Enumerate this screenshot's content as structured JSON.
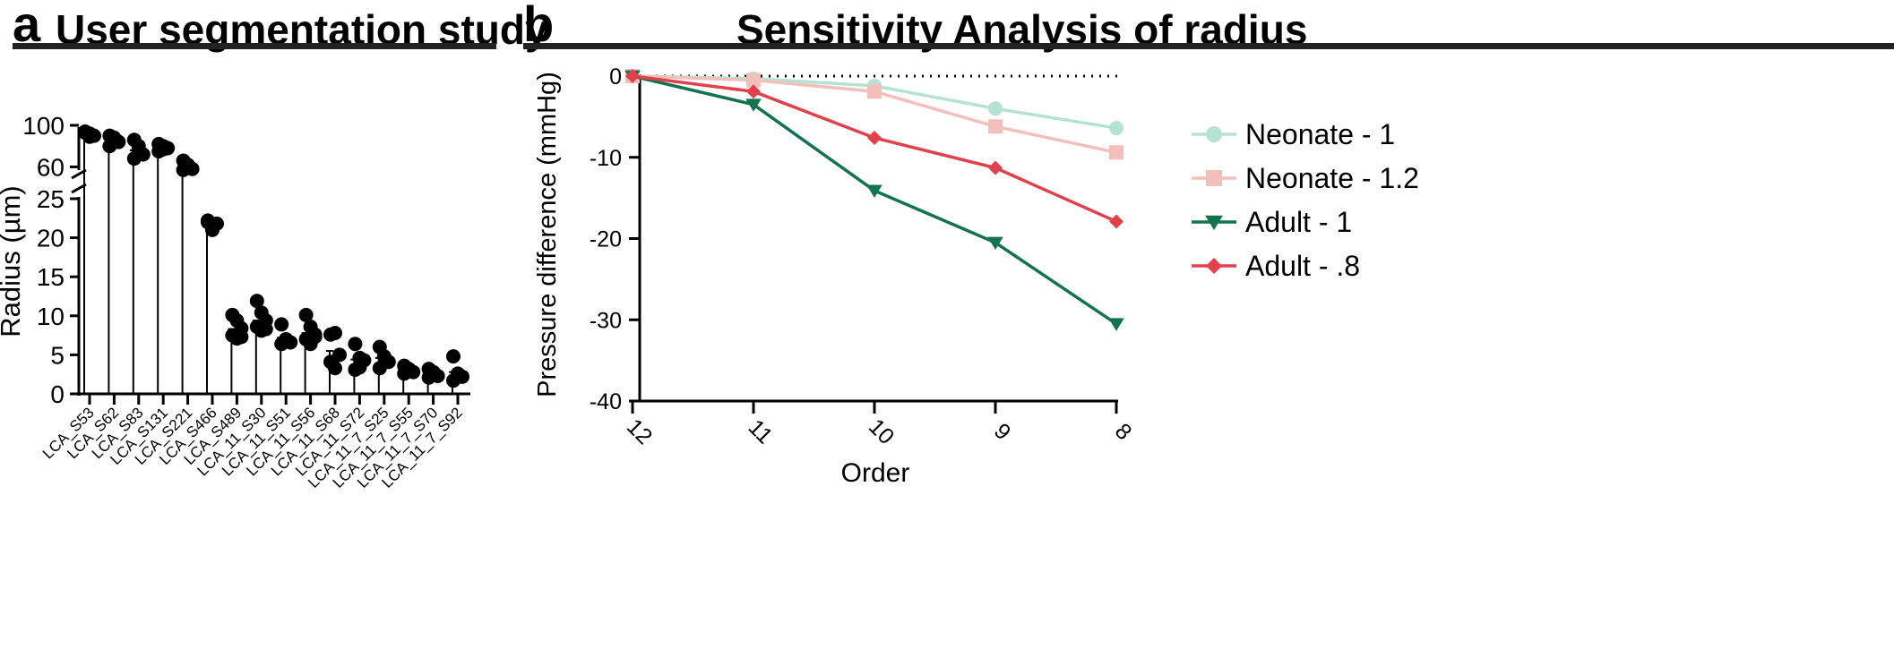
{
  "panel_a": {
    "letter": "a",
    "title": "User segmentation study"
  },
  "panel_b": {
    "letter": "b",
    "title": "Sensitivity Analysis of radius"
  },
  "chart_data": [
    {
      "type": "scatter",
      "title": "User segmentation study",
      "ylabel": "Radius (µm)",
      "xlabel": "",
      "broken_axis": true,
      "y_lower_range": [
        0,
        25
      ],
      "y_upper_range": [
        50,
        100
      ],
      "y_lower_ticks": [
        "0",
        "5",
        "10",
        "15",
        "20",
        "25"
      ],
      "y_upper_ticks": [
        "60",
        "100"
      ],
      "categories": [
        "LCA_S53",
        "LCA_S62",
        "LCA_S83",
        "LCA_S131",
        "LCA_S221",
        "LCA_S466",
        "LCA_S489",
        "LCA_11_S30",
        "LCA_11_S51",
        "LCA_11_S56",
        "LCA_11_S68",
        "LCA_11_S72",
        "LCA_11_7_S25",
        "LCA_11_7_S55",
        "LCA_11_7_S70",
        "LCA_11_7_S92"
      ],
      "points": [
        [
          94,
          92,
          90,
          93,
          89
        ],
        [
          90,
          88,
          84,
          80,
          87
        ],
        [
          86,
          80,
          72,
          68,
          75
        ],
        [
          82,
          80,
          78,
          75,
          77
        ],
        [
          66,
          62,
          58,
          57,
          60
        ],
        [
          22.2,
          21.0,
          21.8,
          22.0
        ],
        [
          10.1,
          9.4,
          8.4,
          7.5,
          7.1,
          7.3
        ],
        [
          11.9,
          10.4,
          9.4,
          8.6,
          8.1,
          8.3
        ],
        [
          8.9,
          7.0,
          6.6,
          6.4,
          6.9
        ],
        [
          10.1,
          8.6,
          7.6,
          7.0,
          6.4,
          7.3
        ],
        [
          7.6,
          7.8,
          5.0,
          4.1,
          3.3
        ],
        [
          6.4,
          4.6,
          4.3,
          3.1,
          3.4
        ],
        [
          6.0,
          4.8,
          4.1,
          3.3
        ],
        [
          3.6,
          3.2,
          2.8,
          2.6
        ],
        [
          3.2,
          2.8,
          2.3,
          2.1
        ],
        [
          4.8,
          2.6,
          2.2,
          1.7
        ]
      ],
      "bar_values": [
        91,
        85,
        76,
        78,
        60,
        21.8,
        8.3,
        9.4,
        7.2,
        7.8,
        5.5,
        4.4,
        4.6,
        3.0,
        2.6,
        2.8
      ]
    },
    {
      "type": "line",
      "title": "Sensitivity Analysis of radius",
      "xlabel": "Order",
      "ylabel": "Pressure difference (mmHg)",
      "x": [
        "12",
        "11",
        "10",
        "9",
        "8"
      ],
      "ylim": [
        -40,
        0
      ],
      "yticks": [
        "0",
        "-10",
        "-20",
        "-30",
        "-40"
      ],
      "reference_line": 0,
      "legend_position": "right",
      "series": [
        {
          "name": "Neonate - 1",
          "marker": "circle",
          "color": "#b5e3d3",
          "values": [
            0,
            -0.3,
            -1.2,
            -4.0,
            -6.4
          ]
        },
        {
          "name": "Neonate - 1.2",
          "marker": "square",
          "color": "#f2bfbb",
          "values": [
            0,
            -0.5,
            -1.9,
            -6.2,
            -9.4
          ]
        },
        {
          "name": "Adult - 1",
          "marker": "triangle-down",
          "color": "#12734f",
          "values": [
            0,
            -3.5,
            -14.1,
            -20.5,
            -30.5
          ]
        },
        {
          "name": "Adult - .8",
          "marker": "diamond",
          "color": "#e2414b",
          "values": [
            0,
            -1.9,
            -7.6,
            -11.3,
            -17.9
          ]
        }
      ]
    }
  ]
}
